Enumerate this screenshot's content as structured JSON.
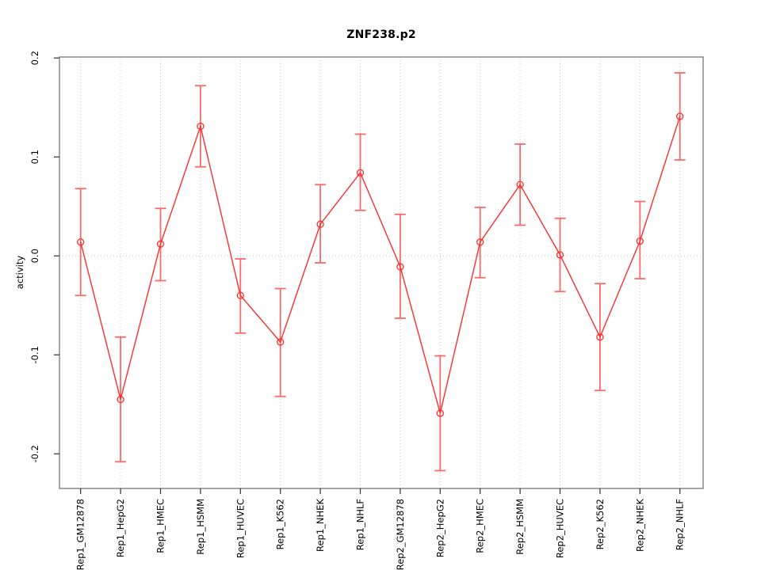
{
  "chart_data": {
    "type": "line",
    "title": "ZNF238.p2",
    "xlabel": "",
    "ylabel": "activity",
    "legend": "none",
    "grid": {
      "vertical": "per-category-dotted",
      "horizontal_at_zero": true
    },
    "ylim": [
      -0.235,
      0.201
    ],
    "yticks": [
      0.2,
      0.1,
      0.0,
      -0.1,
      -0.2
    ],
    "ytick_labels": [
      "0.2",
      "0.1",
      "0.0",
      "-0.1",
      "-0.2"
    ],
    "categories": [
      "Rep1_GM12878",
      "Rep1_HepG2",
      "Rep1_HMEC",
      "Rep1_HSMM",
      "Rep1_HUVEC",
      "Rep1_K562",
      "Rep1_NHEK",
      "Rep1_NHLF",
      "Rep2_GM12878",
      "Rep2_HepG2",
      "Rep2_HMEC",
      "Rep2_HSMM",
      "Rep2_HUVEC",
      "Rep2_K562",
      "Rep2_NHEK",
      "Rep2_NHLF"
    ],
    "series": [
      {
        "name": "activity",
        "values": [
          0.014,
          -0.145,
          0.012,
          0.131,
          -0.04,
          -0.087,
          0.032,
          0.084,
          -0.011,
          -0.159,
          0.014,
          0.072,
          0.001,
          -0.082,
          0.015,
          0.141
        ],
        "error_high": [
          0.068,
          -0.082,
          0.048,
          0.172,
          -0.003,
          -0.033,
          0.072,
          0.123,
          0.042,
          -0.101,
          0.049,
          0.113,
          0.038,
          -0.028,
          0.055,
          0.185
        ],
        "error_low": [
          -0.04,
          -0.208,
          -0.025,
          0.09,
          -0.078,
          -0.142,
          -0.007,
          0.046,
          -0.063,
          -0.217,
          -0.022,
          0.031,
          -0.036,
          -0.136,
          -0.023,
          0.097
        ]
      }
    ],
    "colors": {
      "line": "#fc2d2d",
      "error_bar": "#f96a6a",
      "point": "#fc2d2d",
      "grid": "#c6c6c6",
      "box": "#7f7f7f",
      "tick": "#404040",
      "text": "#000000"
    }
  }
}
